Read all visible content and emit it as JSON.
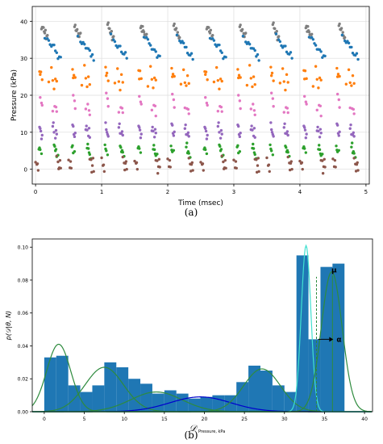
{
  "figure": {
    "caption_a": "(a)",
    "caption_b": "(b)"
  },
  "chart_data": [
    {
      "type": "scatter",
      "xlabel": "Time (msec)",
      "ylabel": "Pressure (kPa)",
      "xlim": [
        -0.05,
        5.05
      ],
      "ylim": [
        -4,
        44
      ],
      "x_ticks": [
        0,
        1,
        2,
        3,
        4,
        5
      ],
      "y_ticks": [
        0,
        10,
        20,
        30,
        40
      ],
      "grid": true,
      "colors": [
        "#7f7f7f",
        "#1f77b4",
        "#ff7f0e",
        "#e377c2",
        "#9467bd",
        "#2ca02c",
        "#8c564b"
      ],
      "cycle_length_msec": 0.5,
      "num_cycles": 10,
      "series": [
        {
          "color": "#7f7f7f",
          "x": [
            0.1,
            0.12,
            0.13,
            0.15,
            0.17,
            0.09,
            0.14,
            0.16,
            0.11,
            0.18
          ],
          "y": [
            39,
            38,
            37.5,
            37,
            36,
            38.5,
            36.5,
            35.5,
            37.8,
            36.2
          ]
        },
        {
          "color": "#1f77b4",
          "x": [
            0.14,
            0.18,
            0.22,
            0.26,
            0.3,
            0.34,
            0.2,
            0.24,
            0.28,
            0.32,
            0.36,
            0.38
          ],
          "y": [
            36,
            35,
            34,
            33,
            32,
            30.5,
            34.5,
            33.5,
            33,
            31.5,
            31,
            30
          ]
        },
        {
          "color": "#ff7f0e",
          "x": [
            0.06,
            0.08,
            0.1,
            0.2,
            0.26,
            0.3,
            0.32,
            0.28,
            0.07,
            0.24
          ],
          "y": [
            27,
            26,
            24.5,
            23,
            24,
            25,
            23.5,
            22,
            25,
            27.5
          ]
        },
        {
          "color": "#e377c2",
          "x": [
            0.07,
            0.1,
            0.26,
            0.32,
            0.29,
            0.09,
            0.31
          ],
          "y": [
            20,
            17,
            16,
            15,
            17,
            18.5,
            16.5
          ]
        },
        {
          "color": "#9467bd",
          "x": [
            0.06,
            0.08,
            0.1,
            0.26,
            0.28,
            0.3,
            0.32,
            0.07,
            0.27,
            0.31,
            0.09
          ],
          "y": [
            12,
            10,
            9.5,
            11,
            10,
            9,
            9.2,
            11.3,
            12,
            10.5,
            8.8
          ]
        },
        {
          "color": "#2ca02c",
          "x": [
            0.05,
            0.07,
            0.09,
            0.28,
            0.3,
            0.32,
            0.34,
            0.29,
            0.31,
            0.06
          ],
          "y": [
            6,
            5,
            4.5,
            6,
            5,
            4,
            3.5,
            6.5,
            4.8,
            5.8
          ]
        },
        {
          "color": "#8c564b",
          "x": [
            0.0,
            0.02,
            0.04,
            0.32,
            0.34,
            0.36,
            0.38,
            0.03,
            0.35,
            0.37
          ],
          "y": [
            2.5,
            1,
            0,
            3,
            2,
            1,
            0,
            1.8,
            -0.5,
            2.4
          ]
        }
      ]
    },
    {
      "type": "bar",
      "xlabel": "𝒟",
      "xlabel_subscript": "Pressure, kPa",
      "ylabel": "p(𝒟|θ, N)",
      "xlim": [
        -1.5,
        41
      ],
      "ylim": [
        0,
        0.105
      ],
      "x_ticks": [
        0,
        5,
        10,
        15,
        20,
        25,
        30,
        35,
        40
      ],
      "y_ticks": [
        0.0,
        0.02,
        0.04,
        0.06,
        0.08,
        0.1
      ],
      "y_tick_labels": [
        "0.00",
        "0.02",
        "0.04",
        "0.06",
        "0.08",
        "0.10"
      ],
      "bar_color": "#1f77b4",
      "bin_edges": [
        0,
        1.5,
        3,
        4.5,
        6,
        7.5,
        9,
        10.5,
        12,
        13.5,
        15,
        16.5,
        18,
        19.5,
        21,
        22.5,
        24,
        25.5,
        27,
        28.5,
        30,
        31.5,
        33,
        34.5,
        36,
        37.5,
        39
      ],
      "values": [
        0.033,
        0.034,
        0.016,
        0.012,
        0.016,
        0.03,
        0.027,
        0.02,
        0.017,
        0.011,
        0.013,
        0.011,
        0.008,
        0.009,
        0.01,
        0.01,
        0.018,
        0.028,
        0.025,
        0.016,
        0.012,
        0.095,
        0.044,
        0.088,
        0.09,
        0.0
      ],
      "annotations": [
        {
          "label": "μ",
          "x": 36.2,
          "y": 0.086
        },
        {
          "label": "α",
          "x": 36.2,
          "y": 0.044
        }
      ],
      "curves": [
        {
          "color": "#2e8b3e",
          "shape": "gaussian",
          "mean": 1.8,
          "sd": 1.5,
          "peak": 0.041
        },
        {
          "color": "#2e8b3e",
          "shape": "gaussian",
          "mean": 7.5,
          "sd": 2.4,
          "peak": 0.027
        },
        {
          "color": "#2e8b3e",
          "shape": "gaussian",
          "mean": 14.0,
          "sd": 3.2,
          "peak": 0.012
        },
        {
          "color": "#0000cc",
          "shape": "gaussian",
          "mean": 19.5,
          "sd": 3.8,
          "peak": 0.009
        },
        {
          "color": "#2e8b3e",
          "shape": "gaussian",
          "mean": 27.2,
          "sd": 2.3,
          "peak": 0.026
        },
        {
          "color": "#40e0d0",
          "shape": "gaussian",
          "mean": 32.7,
          "sd": 0.6,
          "peak": 0.101
        },
        {
          "color": "#2e8b3e",
          "shape": "gaussian",
          "mean": 35.9,
          "sd": 1.3,
          "peak": 0.085
        }
      ],
      "vlines": [
        {
          "color": "#2e8b3e",
          "x": 34.0,
          "from": 0.0,
          "to": 0.082,
          "dashed": true
        },
        {
          "color": "#2e8b3e",
          "x": 36.0,
          "from": 0.0,
          "to": 0.083,
          "dashed": false
        }
      ]
    }
  ]
}
